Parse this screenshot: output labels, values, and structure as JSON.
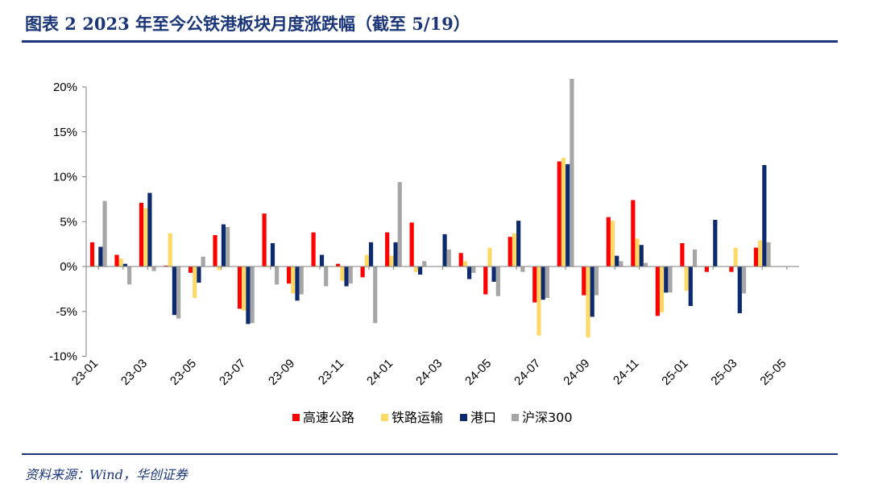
{
  "header": {
    "title": "图表 2   2023 年至今公铁港板块月度涨跌幅（截至 5/19）"
  },
  "footer": {
    "source": "资料来源：Wind，华创证券"
  },
  "chart_data": {
    "type": "bar",
    "title": "",
    "xlabel": "",
    "ylabel": "",
    "ylim": [
      -10,
      20
    ],
    "yticks": [
      -10,
      -5,
      0,
      5,
      10,
      15,
      20
    ],
    "ytick_labels": [
      "-10%",
      "-5%",
      "0%",
      "5%",
      "10%",
      "15%",
      "20%"
    ],
    "grid": false,
    "legend_position": "bottom",
    "categories": [
      "23-01",
      "23-02",
      "23-03",
      "23-04",
      "23-05",
      "23-06",
      "23-07",
      "23-08",
      "23-09",
      "23-10",
      "23-11",
      "23-12",
      "24-01",
      "24-02",
      "24-03",
      "24-04",
      "24-05",
      "24-06",
      "24-07",
      "24-08",
      "24-09",
      "24-10",
      "24-11",
      "24-12",
      "25-01",
      "25-02",
      "25-03",
      "25-04",
      "25-05"
    ],
    "xtick_labels": [
      "23-01",
      "23-03",
      "23-05",
      "23-07",
      "23-09",
      "23-11",
      "24-01",
      "24-03",
      "24-05",
      "24-07",
      "24-09",
      "24-11",
      "25-01",
      "25-03",
      "25-05"
    ],
    "series": [
      {
        "name": "高速公路",
        "color": "#ff0000",
        "values": [
          2.7,
          1.3,
          7.1,
          0.1,
          -0.7,
          3.5,
          -4.7,
          5.9,
          -1.9,
          3.8,
          0.3,
          -1.2,
          3.8,
          4.9,
          0.0,
          1.5,
          -3.1,
          3.3,
          -4.0,
          11.7,
          -3.2,
          5.5,
          7.4,
          -5.5,
          2.6,
          -0.6,
          -0.6,
          2.1,
          0.0
        ]
      },
      {
        "name": "铁路运输",
        "color": "#ffd966",
        "values": [
          0.1,
          0.9,
          6.5,
          3.7,
          -3.5,
          -0.4,
          -4.9,
          0.1,
          -3.0,
          0.1,
          -1.6,
          1.3,
          1.2,
          -0.6,
          0.0,
          0.6,
          2.1,
          3.7,
          -7.7,
          12.1,
          -7.9,
          5.1,
          3.1,
          -5.1,
          -2.7,
          0.0,
          2.1,
          2.9,
          0.0
        ]
      },
      {
        "name": "港口",
        "color": "#0e2a6e",
        "values": [
          2.2,
          0.3,
          8.2,
          -5.4,
          -1.8,
          4.7,
          -6.4,
          2.6,
          -3.8,
          1.3,
          -2.2,
          2.7,
          2.7,
          -0.9,
          3.6,
          -1.4,
          -1.7,
          5.1,
          -3.7,
          11.4,
          -5.6,
          1.2,
          2.4,
          -2.9,
          -4.4,
          5.2,
          -5.2,
          11.3,
          0.0
        ]
      },
      {
        "name": "沪深300",
        "color": "#a6a6a6",
        "values": [
          7.3,
          -2.0,
          -0.5,
          -5.8,
          1.1,
          4.4,
          -6.3,
          -2.0,
          -3.1,
          -2.2,
          -1.9,
          -6.3,
          9.4,
          0.6,
          1.9,
          -0.7,
          -3.3,
          -0.6,
          -3.5,
          20.9,
          -3.2,
          0.6,
          0.4,
          -2.9,
          1.9,
          0.0,
          -3.0,
          2.7,
          0.0
        ]
      }
    ]
  }
}
